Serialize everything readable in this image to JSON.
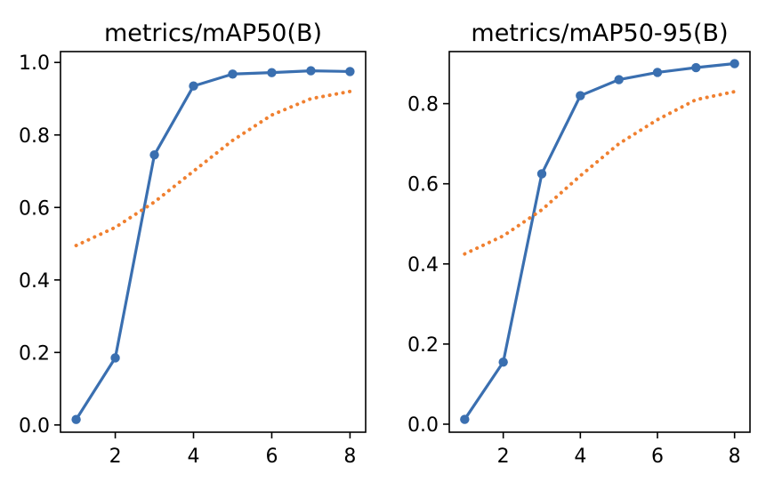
{
  "chart_data": [
    {
      "type": "line",
      "title": "metrics/mAP50(B)",
      "xlabel": "",
      "ylabel": "",
      "xlim": [
        0.6,
        8.4
      ],
      "ylim": [
        -0.02,
        1.03
      ],
      "xticks": [
        2,
        4,
        6,
        8
      ],
      "yticks": [
        0.0,
        0.2,
        0.4,
        0.6,
        0.8,
        1.0
      ],
      "xtick_labels": [
        "2",
        "4",
        "6",
        "8"
      ],
      "ytick_labels": [
        "0.0",
        "0.2",
        "0.4",
        "0.6",
        "0.8",
        "1.0"
      ],
      "grid": false,
      "series": [
        {
          "style": "solid",
          "color": "#3a6fb0",
          "markers": true,
          "x": [
            1,
            2,
            3,
            4,
            5,
            6,
            7,
            8
          ],
          "y": [
            0.015,
            0.185,
            0.745,
            0.935,
            0.968,
            0.972,
            0.977,
            0.975
          ]
        },
        {
          "style": "dotted",
          "color": "#f08030",
          "markers": false,
          "x": [
            1,
            2,
            3,
            4,
            5,
            6,
            7,
            8
          ],
          "y": [
            0.495,
            0.545,
            0.615,
            0.7,
            0.785,
            0.855,
            0.9,
            0.92
          ]
        }
      ]
    },
    {
      "type": "line",
      "title": "metrics/mAP50-95(B)",
      "xlabel": "",
      "ylabel": "",
      "xlim": [
        0.6,
        8.4
      ],
      "ylim": [
        -0.02,
        0.93
      ],
      "xticks": [
        2,
        4,
        6,
        8
      ],
      "yticks": [
        0.0,
        0.2,
        0.4,
        0.6,
        0.8
      ],
      "xtick_labels": [
        "2",
        "4",
        "6",
        "8"
      ],
      "ytick_labels": [
        "0.0",
        "0.2",
        "0.4",
        "0.6",
        "0.8"
      ],
      "grid": false,
      "series": [
        {
          "style": "solid",
          "color": "#3a6fb0",
          "markers": true,
          "x": [
            1,
            2,
            3,
            4,
            5,
            6,
            7,
            8
          ],
          "y": [
            0.012,
            0.155,
            0.625,
            0.82,
            0.86,
            0.878,
            0.89,
            0.9
          ]
        },
        {
          "style": "dotted",
          "color": "#f08030",
          "markers": false,
          "x": [
            1,
            2,
            3,
            4,
            5,
            6,
            7,
            8
          ],
          "y": [
            0.425,
            0.47,
            0.535,
            0.62,
            0.7,
            0.76,
            0.81,
            0.83
          ]
        }
      ]
    }
  ]
}
